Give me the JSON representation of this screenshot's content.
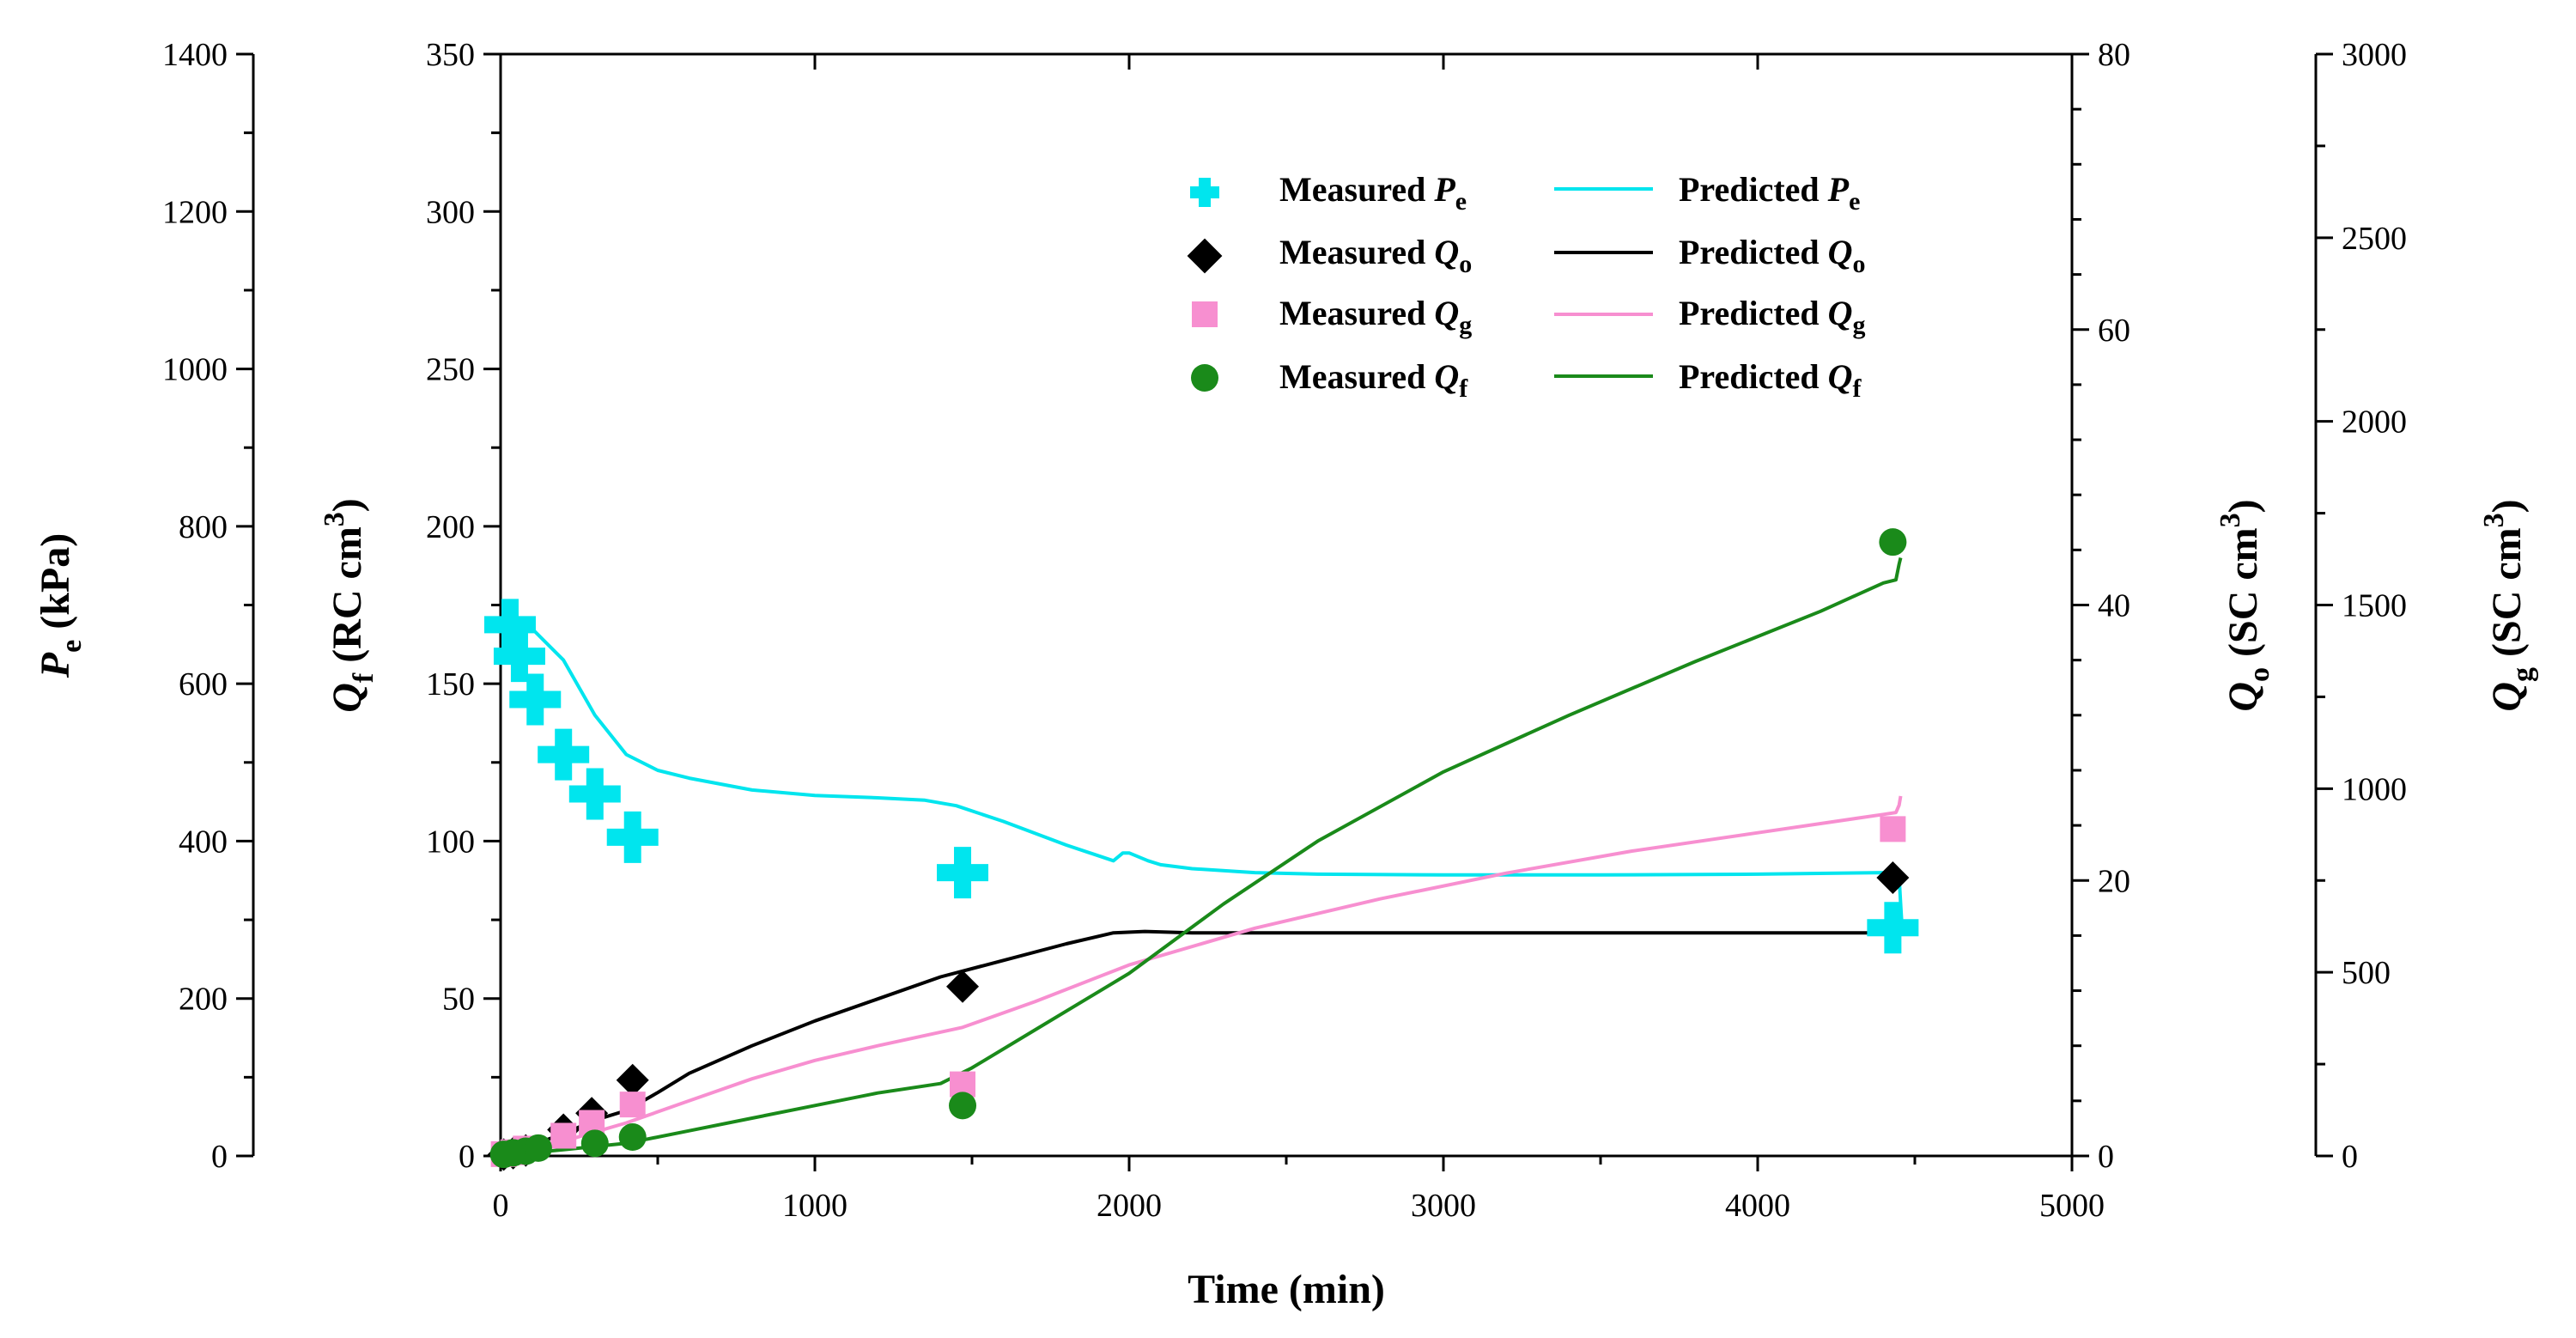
{
  "colors": {
    "pe": "#00e5ee",
    "qo": "#000000",
    "qg": "#f78fd0",
    "qf": "#1a8a1a",
    "axis": "#000000"
  },
  "chart_data": {
    "type": "scatter",
    "title": "",
    "x_axis": {
      "label": "Time (min)",
      "range": [
        0,
        5000
      ],
      "ticks": [
        "0",
        "1000",
        "2000",
        "3000",
        "4000",
        "5000"
      ]
    },
    "y_axes": {
      "pe": {
        "label_main": "P",
        "label_sub": "e",
        "label_unit": " (kPa)",
        "range": [
          0,
          1400
        ],
        "ticks": [
          "0",
          "200",
          "400",
          "600",
          "800",
          "1000",
          "1200",
          "1400"
        ]
      },
      "qf": {
        "label_main": "Q",
        "label_sub": "f",
        "label_unit": " (RC cm",
        "label_sup": "3",
        "label_close": ")",
        "range": [
          0,
          350
        ],
        "ticks": [
          "0",
          "50",
          "100",
          "150",
          "200",
          "250",
          "300",
          "350"
        ]
      },
      "qo": {
        "label_main": "Q",
        "label_sub": "o",
        "label_unit": " (SC cm",
        "label_sup": "3",
        "label_close": ")",
        "range": [
          0,
          80
        ],
        "ticks": [
          "0",
          "20",
          "40",
          "60",
          "80"
        ]
      },
      "qg": {
        "label_main": "Q",
        "label_sub": "g",
        "label_unit": " (SC cm",
        "label_sup": "3",
        "label_close": ")",
        "range": [
          0,
          3000
        ],
        "ticks": [
          "0",
          "500",
          "1000",
          "1500",
          "2000",
          "2500",
          "3000"
        ]
      }
    },
    "legend": {
      "placement": "top-center",
      "entries": [
        {
          "key": "pe",
          "measured": "Measured ",
          "predicted": "Predicted ",
          "sym": "P",
          "sub": "e"
        },
        {
          "key": "qo",
          "measured": "Measured ",
          "predicted": "Predicted ",
          "sym": "Q",
          "sub": "o"
        },
        {
          "key": "qg",
          "measured": "Measured ",
          "predicted": "Predicted ",
          "sym": "Q",
          "sub": "g"
        },
        {
          "key": "qf",
          "measured": "Measured ",
          "predicted": "Predicted ",
          "sym": "Q",
          "sub": "f"
        }
      ]
    },
    "series": [
      {
        "name": "Measured Pe",
        "axis": "pe",
        "kind": "points",
        "marker": "cross",
        "x": [
          30,
          60,
          110,
          200,
          300,
          420,
          1470,
          4430
        ],
        "y": [
          675,
          635,
          580,
          510,
          460,
          405,
          360,
          290
        ]
      },
      {
        "name": "Predicted Pe",
        "axis": "pe",
        "kind": "line",
        "x": [
          0,
          50,
          100,
          200,
          300,
          400,
          500,
          600,
          800,
          1000,
          1200,
          1350,
          1450,
          1600,
          1800,
          1950,
          1980,
          2000,
          2060,
          2100,
          2200,
          2400,
          2600,
          3000,
          3500,
          4000,
          4400,
          4450,
          4455,
          4458
        ],
        "y": [
          680,
          680,
          670,
          630,
          560,
          510,
          490,
          480,
          465,
          458,
          455,
          452,
          445,
          425,
          395,
          375,
          385,
          385,
          375,
          370,
          365,
          360,
          358,
          357,
          357,
          358,
          360,
          355,
          320,
          300
        ]
      },
      {
        "name": "Measured Qo",
        "axis": "qo",
        "kind": "points",
        "marker": "diamond",
        "x": [
          10,
          40,
          80,
          200,
          290,
          420,
          1470,
          4430
        ],
        "y": [
          0.1,
          0.2,
          0.4,
          1.9,
          3.1,
          5.5,
          12.3,
          20.2
        ]
      },
      {
        "name": "Predicted Qo",
        "axis": "qo",
        "kind": "line",
        "x": [
          0,
          100,
          200,
          300,
          400,
          500,
          600,
          800,
          1000,
          1200,
          1400,
          1600,
          1800,
          1950,
          2050,
          2200,
          2600,
          3000,
          3500,
          4000,
          4400,
          4450
        ],
        "y": [
          0,
          0.8,
          1.6,
          2.6,
          3.3,
          4.6,
          6.0,
          8.0,
          9.8,
          11.4,
          13.0,
          14.2,
          15.4,
          16.2,
          16.3,
          16.2,
          16.2,
          16.2,
          16.2,
          16.2,
          16.2,
          16.2
        ]
      },
      {
        "name": "Measured Qg",
        "axis": "qg",
        "kind": "points",
        "marker": "square",
        "x": [
          10,
          40,
          80,
          200,
          290,
          420,
          1470,
          4430
        ],
        "y": [
          5,
          10,
          20,
          55,
          90,
          140,
          195,
          890
        ]
      },
      {
        "name": "Predicted Qg",
        "axis": "qg",
        "kind": "line",
        "x": [
          0,
          100,
          200,
          300,
          400,
          600,
          800,
          1000,
          1200,
          1470,
          1700,
          2000,
          2400,
          2800,
          3200,
          3600,
          4000,
          4400,
          4440,
          4450,
          4455
        ],
        "y": [
          0,
          20,
          40,
          65,
          90,
          150,
          210,
          260,
          300,
          350,
          420,
          520,
          620,
          700,
          770,
          830,
          880,
          930,
          935,
          955,
          980
        ]
      },
      {
        "name": "Measured Qf",
        "axis": "qf",
        "kind": "points",
        "marker": "circle",
        "x": [
          10,
          40,
          80,
          120,
          300,
          420,
          1470,
          4430
        ],
        "y": [
          0.5,
          1.0,
          1.5,
          2.5,
          4.0,
          6.0,
          16.0,
          195.0
        ]
      },
      {
        "name": "Predicted Qf",
        "axis": "qf",
        "kind": "line",
        "x": [
          0,
          100,
          200,
          300,
          400,
          600,
          800,
          1000,
          1200,
          1400,
          1500,
          1700,
          2000,
          2300,
          2600,
          3000,
          3400,
          3800,
          4200,
          4400,
          4440,
          4450,
          4455
        ],
        "y": [
          0,
          1,
          2,
          3,
          4,
          8,
          12,
          16,
          20,
          23,
          28,
          40,
          58,
          80,
          100,
          122,
          140,
          157,
          173,
          182,
          183,
          188,
          190
        ]
      }
    ]
  }
}
